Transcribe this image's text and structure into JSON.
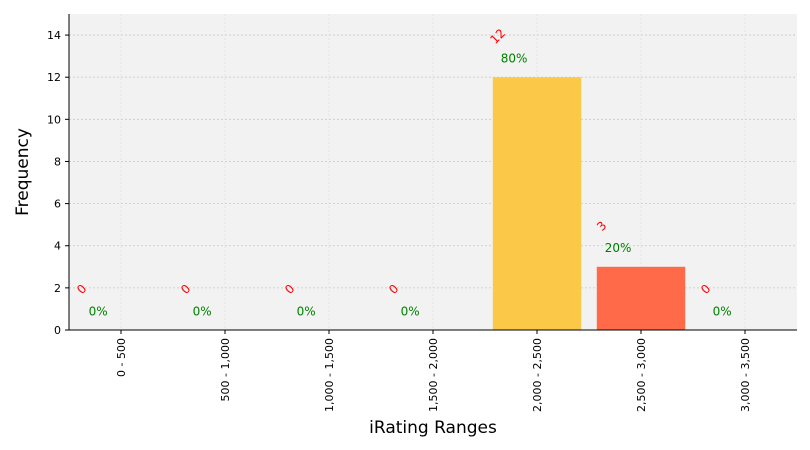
{
  "chart_data": {
    "type": "bar",
    "xlabel": "iRating Ranges",
    "ylabel": "Frequency",
    "categories": [
      "0 - 500",
      "500 - 1,000",
      "1,000 - 1,500",
      "1,500 - 2,000",
      "2,000 - 2,500",
      "2,500 - 3,000",
      "3,000 - 3,500"
    ],
    "values": [
      0,
      0,
      0,
      0,
      12,
      3,
      0
    ],
    "percent_labels": [
      "0%",
      "0%",
      "0%",
      "0%",
      "80%",
      "20%",
      "0%"
    ],
    "bar_colors": [
      "#fcc847",
      "#fcc847",
      "#fcc847",
      "#fcc847",
      "#fcc847",
      "#ff6a48",
      "#fcc847"
    ],
    "ylim": [
      0,
      15
    ],
    "yticks": [
      0,
      2,
      4,
      6,
      8,
      10,
      12,
      14
    ],
    "grid": true,
    "plot_background": "#f2f2f2"
  }
}
